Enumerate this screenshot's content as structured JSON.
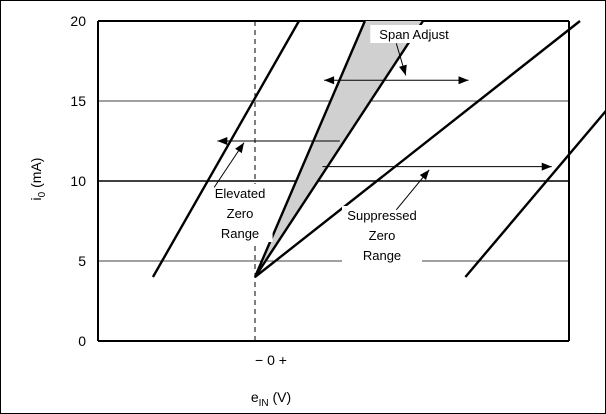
{
  "chart_data": {
    "type": "line",
    "title": "",
    "xlabel": {
      "main": "e",
      "sub": "IN",
      "unit": " (V)"
    },
    "ylabel": {
      "main": "i",
      "sub": "0",
      "unit": " (mA)"
    },
    "x_tick_label": "− 0 +",
    "ylim": [
      0,
      20
    ],
    "y_ticks": [
      0,
      5,
      10,
      15,
      20
    ],
    "xlim": [
      -10,
      20
    ],
    "grid": "horizontal",
    "series": [
      {
        "values": [
          [
            -6.5,
            4
          ],
          [
            2.8,
            20
          ]
        ]
      },
      {
        "values": [
          [
            0,
            4
          ],
          [
            7.0,
            20
          ]
        ]
      },
      {
        "values": [
          [
            0,
            4
          ],
          [
            10.7,
            20
          ]
        ]
      },
      {
        "values": [
          [
            0,
            4
          ],
          [
            20.7,
            20
          ]
        ]
      },
      {
        "values": [
          [
            13.4,
            4
          ],
          [
            27.2,
            20
          ]
        ]
      }
    ],
    "shaded_region": {
      "polygon": [
        [
          0,
          4
        ],
        [
          7.0,
          20
        ],
        [
          10.7,
          20
        ]
      ],
      "color": "#d0d0d0"
    },
    "zero_line": {
      "x": 0,
      "ylim": [
        0,
        20
      ],
      "style": "dashed"
    },
    "arrows": [
      {
        "from": [
          5.4,
          12.5
        ],
        "to": [
          -2.4,
          12.5
        ],
        "head": "end"
      },
      {
        "from": [
          4.4,
          16.3
        ],
        "to": [
          13.6,
          16.3
        ],
        "head": "both"
      },
      {
        "from": [
          4.3,
          10.9
        ],
        "to": [
          18.9,
          10.9
        ],
        "head": "end"
      }
    ],
    "annotations": [
      {
        "id": "span",
        "lines": [
          "Span Adjust"
        ],
        "pointer_from": [
          9.0,
          18.6
        ],
        "pointer_to": [
          9.6,
          16.6
        ]
      },
      {
        "id": "elevated",
        "lines": [
          "Elevated",
          "Zero",
          "Range"
        ],
        "pointer_from": [
          -2.6,
          9.6
        ],
        "pointer_to": [
          -0.7,
          12.4
        ]
      },
      {
        "id": "suppressed",
        "lines": [
          "Suppressed",
          "Zero",
          "Range"
        ],
        "pointer_from": [
          9.0,
          8.2
        ],
        "pointer_to": [
          11.1,
          10.7
        ]
      }
    ]
  },
  "colors": {
    "line": "#000000",
    "grid": "#000000",
    "shade": "#d0d0d0",
    "background": "#ffffff"
  }
}
